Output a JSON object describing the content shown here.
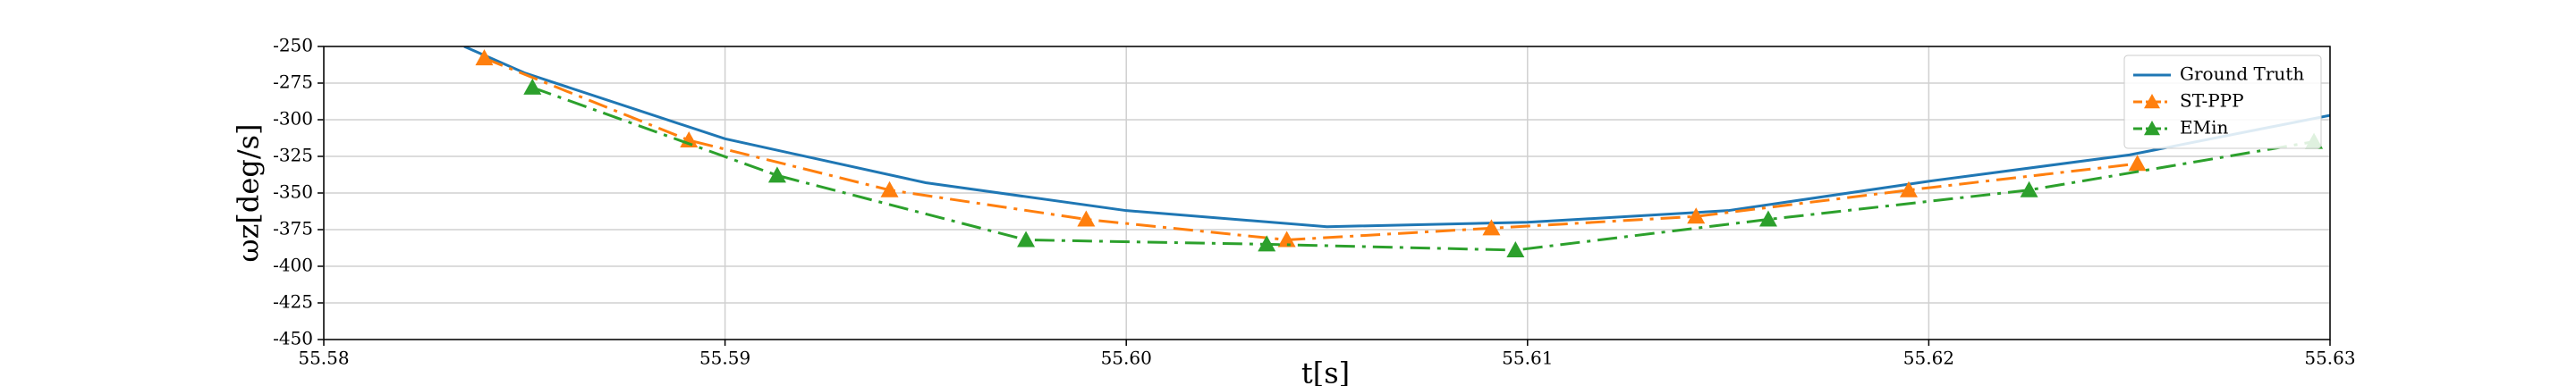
{
  "chart_data": {
    "type": "line",
    "xlabel": "t[s]",
    "ylabel": "ωz[deg/s]",
    "xlim": [
      55.58,
      55.63
    ],
    "xticks": [
      55.58,
      55.59,
      {
        "value": 55.6,
        "label": "55.60"
      },
      55.61,
      55.62,
      55.63
    ],
    "ylim": [
      -450,
      -250
    ],
    "yticks": [
      -450,
      -425,
      -400,
      -375,
      -350,
      -325,
      -300,
      -275,
      -250
    ],
    "grid": true,
    "legend": "upper right",
    "series": [
      {
        "name": "Ground Truth",
        "color": "#1f77b4",
        "style": "solid",
        "marker": "none",
        "x": [
          55.5835,
          55.585,
          55.59,
          55.595,
          55.6,
          55.605,
          55.61,
          55.615,
          55.62,
          55.625,
          55.63
        ],
        "values": [
          -250,
          -268,
          -313,
          -343,
          -362,
          -373,
          -370,
          -362,
          -342,
          -324,
          -297
        ]
      },
      {
        "name": "ST-PPP",
        "color": "#ff7f0e",
        "style": "dashdot",
        "marker": "triangle",
        "x": [
          55.584,
          55.5891,
          55.5941,
          55.599,
          55.604,
          55.6091,
          55.6142,
          55.6195,
          55.6252
        ],
        "values": [
          -258,
          -314,
          -348,
          -368,
          -382,
          -374,
          -366,
          -348,
          -330
        ]
      },
      {
        "name": "EMin",
        "color": "#2ca02c",
        "style": "dashdot",
        "marker": "triangle",
        "x": [
          55.5852,
          55.5913,
          55.5975,
          55.6035,
          55.6097,
          55.616,
          55.6225,
          55.6296
        ],
        "values": [
          -278,
          -338,
          -382,
          -385,
          -389,
          -368,
          -348,
          -315
        ]
      }
    ]
  }
}
